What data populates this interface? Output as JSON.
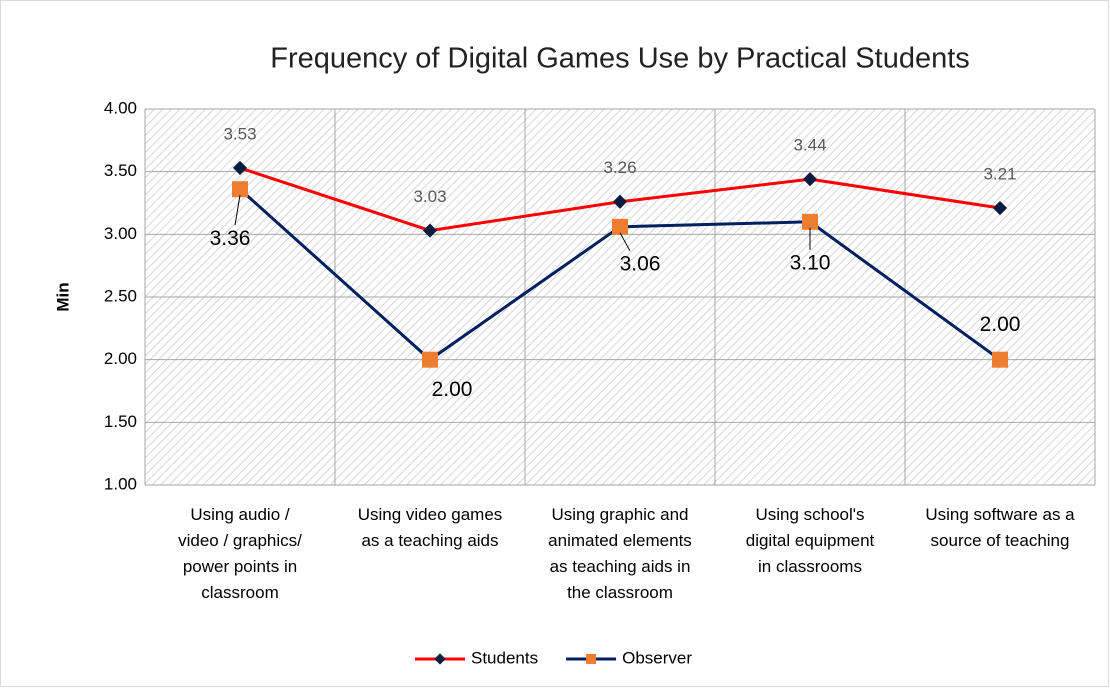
{
  "chart_data": {
    "type": "line",
    "title": "Frequency of Digital Games Use by Practical Students",
    "y_label": "Min",
    "categories": [
      "Using  audio /\nvideo / graphics/\npower points in\nclassroom",
      "Using video games\nas a teaching aids",
      "Using graphic and\nanimated elements\nas teaching aids in\nthe classroom",
      "Using school's\ndigital equipment\nin classrooms",
      "Using software as a\nsource of teaching"
    ],
    "series": [
      {
        "name": "Students",
        "color": "#ff0000",
        "marker_color": "#0d1b3e",
        "values": [
          3.53,
          3.03,
          3.26,
          3.44,
          3.21
        ],
        "value_labels": [
          "3.53",
          "3.03",
          "3.26",
          "3.44",
          "3.21"
        ]
      },
      {
        "name": "Observer",
        "color": "#002060",
        "marker_color": "#ed7d31",
        "values": [
          3.36,
          2.0,
          3.06,
          3.1,
          2.0
        ],
        "value_labels": [
          "3.36",
          "2.00",
          "3.06",
          "3.10",
          "2.00"
        ]
      }
    ],
    "ylim": [
      1,
      4
    ],
    "yticks": [
      {
        "value": 1,
        "label": "1.00"
      },
      {
        "value": 1.5,
        "label": "1.50"
      },
      {
        "value": 2,
        "label": "2.00"
      },
      {
        "value": 2.5,
        "label": "2.50"
      },
      {
        "value": 3,
        "label": "3.00"
      },
      {
        "value": 3.5,
        "label": "3.50"
      },
      {
        "value": 4,
        "label": "4.00"
      }
    ],
    "grid": true,
    "legend": "bottom"
  }
}
